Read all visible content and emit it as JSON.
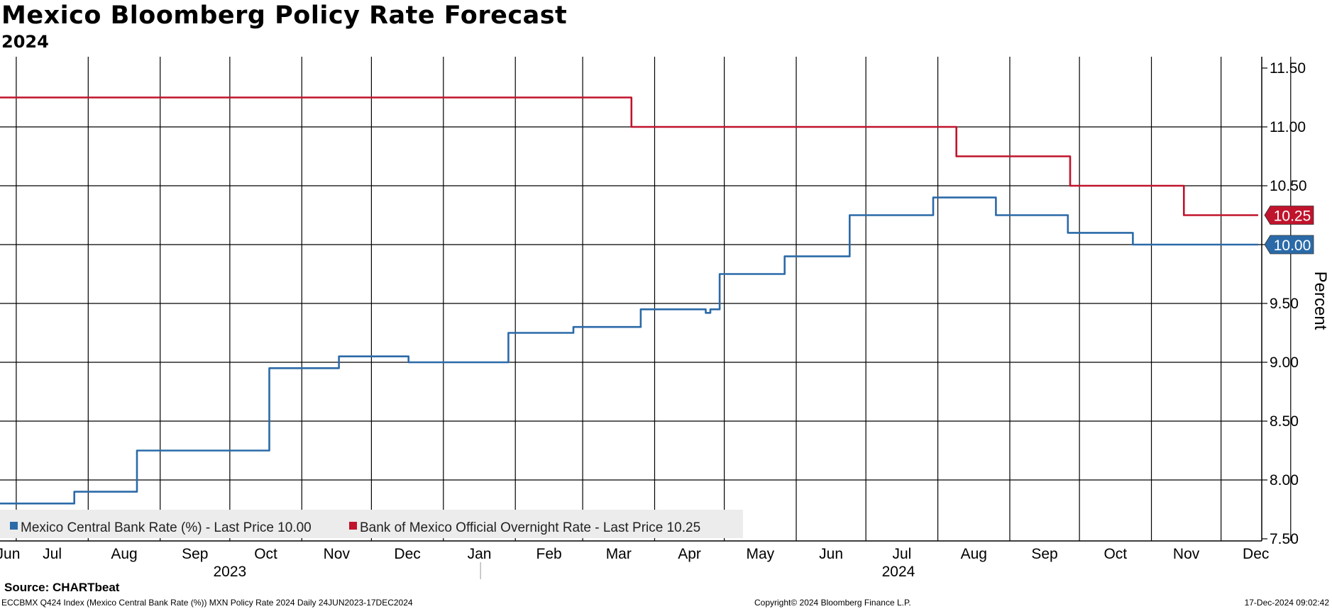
{
  "title": "Mexico Bloomberg Policy Rate Forecast",
  "subtitle": "2024",
  "source": "Source: CHARTbeat",
  "footer": {
    "left": "ECCBMX Q424 Index (Mexico Central Bank Rate (%)) MXN Policy Rate 2024  Daily 24JUN2023-17DEC2024",
    "center": "Copyright© 2024 Bloomberg Finance L.P.",
    "right": "17-Dec-2024 09:02:42"
  },
  "colors": {
    "blue": "#2b6aa8",
    "red": "#c0142c",
    "grid": "#000000",
    "legend_bg": "#ececec"
  },
  "chart_data": {
    "type": "line",
    "ylabel": "Percent",
    "ylim": [
      7.5,
      11.5
    ],
    "xlim": [
      "2023-06-24",
      "2024-12-17"
    ],
    "yticks": [
      "7.50",
      "8.00",
      "8.50",
      "9.00",
      "9.50",
      "10.00",
      "10.50",
      "11.00",
      "11.50"
    ],
    "month_ticks": [
      {
        "date": "2023-07-01",
        "label": "Jun"
      },
      {
        "date": "2023-08-01",
        "label": "Jul"
      },
      {
        "date": "2023-09-01",
        "label": "Aug"
      },
      {
        "date": "2023-10-01",
        "label": "Sep"
      },
      {
        "date": "2023-11-01",
        "label": "Oct"
      },
      {
        "date": "2023-12-01",
        "label": "Nov"
      },
      {
        "date": "2024-01-01",
        "label": "Dec"
      },
      {
        "date": "2024-02-01",
        "label": "Jan"
      },
      {
        "date": "2024-03-01",
        "label": "Feb"
      },
      {
        "date": "2024-04-01",
        "label": "Mar"
      },
      {
        "date": "2024-05-01",
        "label": "Apr"
      },
      {
        "date": "2024-06-01",
        "label": "May"
      },
      {
        "date": "2024-07-01",
        "label": "Jun"
      },
      {
        "date": "2024-08-01",
        "label": "Jul"
      },
      {
        "date": "2024-09-01",
        "label": "Aug"
      },
      {
        "date": "2024-10-01",
        "label": "Sep"
      },
      {
        "date": "2024-11-01",
        "label": "Oct"
      },
      {
        "date": "2024-12-01",
        "label": "Nov"
      },
      {
        "date": "2024-12-31",
        "label": "Dec"
      }
    ],
    "year_labels": [
      {
        "date": "2023-10-01",
        "label": "2023"
      },
      {
        "date": "2024-07-15",
        "label": "2024"
      }
    ],
    "year_divider": "2024-01-17",
    "grid": true,
    "legend_position": "bottom-left",
    "series": [
      {
        "name": "Mexico Central Bank Rate (%)",
        "legend": "Mexico Central Bank Rate (%) - Last Price 10.00",
        "last_label": "10.00",
        "color": "#2b6aa8",
        "step": true,
        "points": [
          [
            "2023-06-24",
            7.8
          ],
          [
            "2023-07-26",
            7.9
          ],
          [
            "2023-08-22",
            8.25
          ],
          [
            "2023-10-18",
            8.95
          ],
          [
            "2023-11-17",
            9.05
          ],
          [
            "2023-12-17",
            9.0
          ],
          [
            "2024-01-29",
            9.25
          ],
          [
            "2024-02-26",
            9.3
          ],
          [
            "2024-03-26",
            9.45
          ],
          [
            "2024-04-23",
            9.42
          ],
          [
            "2024-04-25",
            9.45
          ],
          [
            "2024-04-29",
            9.75
          ],
          [
            "2024-05-27",
            9.9
          ],
          [
            "2024-06-24",
            10.25
          ],
          [
            "2024-07-30",
            10.4
          ],
          [
            "2024-08-26",
            10.25
          ],
          [
            "2024-09-26",
            10.1
          ],
          [
            "2024-10-24",
            10.0
          ],
          [
            "2024-12-17",
            10.0
          ]
        ]
      },
      {
        "name": "Bank of Mexico Official Overnight Rate",
        "legend": "Bank of Mexico Official Overnight Rate - Last Price 10.25",
        "last_label": "10.25",
        "color": "#c0142c",
        "step": true,
        "points": [
          [
            "2023-06-24",
            11.25
          ],
          [
            "2024-03-22",
            11.0
          ],
          [
            "2024-08-09",
            10.75
          ],
          [
            "2024-09-27",
            10.5
          ],
          [
            "2024-11-15",
            10.25
          ],
          [
            "2024-12-17",
            10.25
          ]
        ]
      }
    ]
  }
}
